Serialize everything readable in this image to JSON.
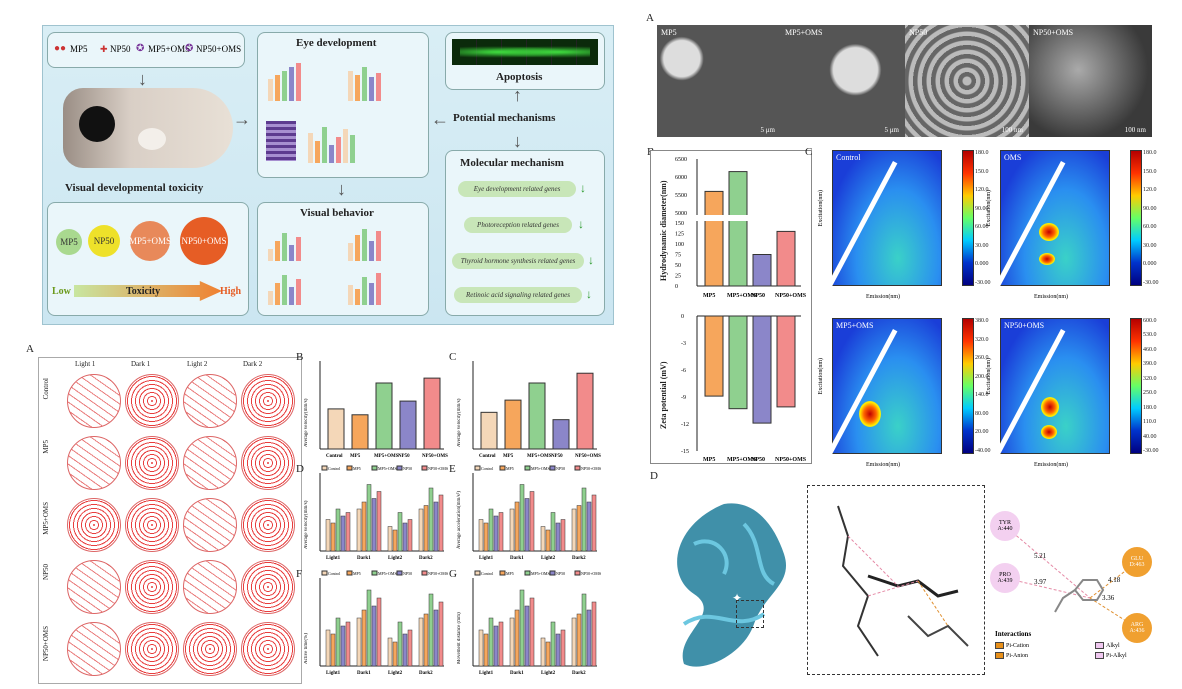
{
  "graphical_abstract": {
    "legend": [
      "MP5",
      "NP50",
      "MP5+OMS",
      "NP50+OMS"
    ],
    "eye_development": "Eye development",
    "visual_behavior": "Visual behavior",
    "apoptosis": "Apoptosis",
    "potential_mechanisms": "Potential mechanisms",
    "molecular_mechanism": "Molecular mechanism",
    "visual_toxicity": "Visual developmental toxicity",
    "genes": [
      "Eye development related genes",
      "Photoreception related genes",
      "Thyroid hormone synthesis related genes",
      "Retinoic acid signaling related genes"
    ],
    "circles": [
      "MP5",
      "NP50",
      "MP5+OMS",
      "NP50+OMS"
    ],
    "toxicity": {
      "low": "Low",
      "label": "Toxicity",
      "high": "High"
    }
  },
  "panel_letters": {
    "A_top": "A",
    "B_top": "B",
    "C_top": "C",
    "D_top": "D",
    "A_bot": "A",
    "B_bot": "B",
    "C_bot": "C",
    "D_bot": "D",
    "E_bot": "E",
    "F_bot": "F",
    "G_bot": "G"
  },
  "sem": {
    "labels": [
      "MP5",
      "MP5+OMS",
      "NP50",
      "NP50+OMS"
    ],
    "scales": [
      "5 μm",
      "5 μm",
      "100 nm",
      "100 nm"
    ]
  },
  "hydro": {
    "ylabel": "Hydrodynamic diameter(nm)",
    "categories": [
      "MP5",
      "MP5+OMS",
      "NP50",
      "NP50+OMS"
    ],
    "ticks": [
      "6500",
      "6000",
      "5500",
      "5000",
      "150",
      "125",
      "100",
      "75",
      "50",
      "25",
      "0"
    ]
  },
  "zeta": {
    "ylabel": "Zeta potential (mV)",
    "categories": [
      "MP5",
      "MP5+OMS",
      "NP50",
      "NP50+OMS"
    ],
    "ticks": [
      "0",
      "-3",
      "-6",
      "-9",
      "-12",
      "-15"
    ]
  },
  "eem": {
    "titles": [
      "Control",
      "OMS",
      "MP5+OMS",
      "NP50+OMS"
    ],
    "xlabel": "Emission(nm)",
    "ylabel": "Excitation(nm)",
    "cbars": [
      [
        "180.0",
        "150.0",
        "120.0",
        "90.00",
        "60.00",
        "30.00",
        "0.000",
        "-30.00"
      ],
      [
        "180.0",
        "150.0",
        "120.0",
        "90.00",
        "60.00",
        "30.00",
        "0.000",
        "-30.00"
      ],
      [
        "380.0",
        "320.0",
        "260.0",
        "200.0",
        "140.0",
        "80.00",
        "20.00",
        "-40.00"
      ],
      [
        "600.0",
        "530.0",
        "460.0",
        "390.0",
        "320.0",
        "250.0",
        "180.0",
        "110.0",
        "40.00",
        "-30.00"
      ]
    ]
  },
  "tracks": {
    "columns": [
      "Light 1",
      "Dark 1",
      "Light 2",
      "Dark 2"
    ],
    "rows": [
      "Control",
      "MP5",
      "MP5+OMS",
      "NP50",
      "NP50+OMS"
    ]
  },
  "behavior": {
    "B_ylabel": "Average velocity(mm/s)",
    "C_ylabel": "Average velocity(mm/s)",
    "D_ylabel": "Average velocity(mm/s)",
    "E_ylabel": "Average acceleration(mm/s²)",
    "F_ylabel": "Active time(%)",
    "G_ylabel": "Movement distance (mm)",
    "groups": [
      "Control",
      "MP5",
      "MP5+OMS",
      "NP50",
      "NP50+OMS"
    ],
    "phases": [
      "Light1",
      "Dark1",
      "Light2",
      "Dark2"
    ]
  },
  "docking": {
    "residues": [
      "TYR A:440",
      "PRO A:439",
      "GLU D:463",
      "ARG A:436"
    ],
    "distances": [
      "5.21",
      "3.97",
      "4.18",
      "3.36"
    ],
    "interactions_title": "Interactions",
    "interactions": [
      "Pi-Cation",
      "Pi-Anion",
      "Alkyl",
      "Pi-Alkyl"
    ]
  },
  "colors": {
    "control": "#f4d7b8",
    "mp5": "#f6a65c",
    "mp5_oms": "#8fd08f",
    "np50": "#8b86c9",
    "np50_oms": "#f28b8b"
  },
  "chart_data": [
    {
      "type": "bar",
      "title": "",
      "ylabel": "Hydrodynamic diameter(nm)",
      "categories": [
        "MP5",
        "MP5+OMS",
        "NP50",
        "NP50+OMS"
      ],
      "values": [
        5600,
        6150,
        75,
        130
      ]
    },
    {
      "type": "bar",
      "title": "",
      "ylabel": "Zeta potential (mV)",
      "categories": [
        "MP5",
        "MP5+OMS",
        "NP50",
        "NP50+OMS"
      ],
      "values": [
        -8.9,
        -10.3,
        -11.9,
        -10.1
      ],
      "ylim": [
        -15,
        0
      ]
    },
    {
      "type": "bar",
      "ylabel": "Average velocity(mm/s)",
      "categories": [
        "Control",
        "MP5",
        "MP5+OMS",
        "NP50",
        "NP50+OMS"
      ],
      "values": [
        0.82,
        0.7,
        1.35,
        0.98,
        1.45
      ]
    },
    {
      "type": "bar",
      "ylabel": "Average velocity(mm/s)",
      "categories": [
        "Control",
        "MP5",
        "MP5+OMS",
        "NP50",
        "NP50+OMS"
      ],
      "values": [
        0.75,
        1.0,
        1.35,
        0.6,
        1.55
      ]
    }
  ]
}
